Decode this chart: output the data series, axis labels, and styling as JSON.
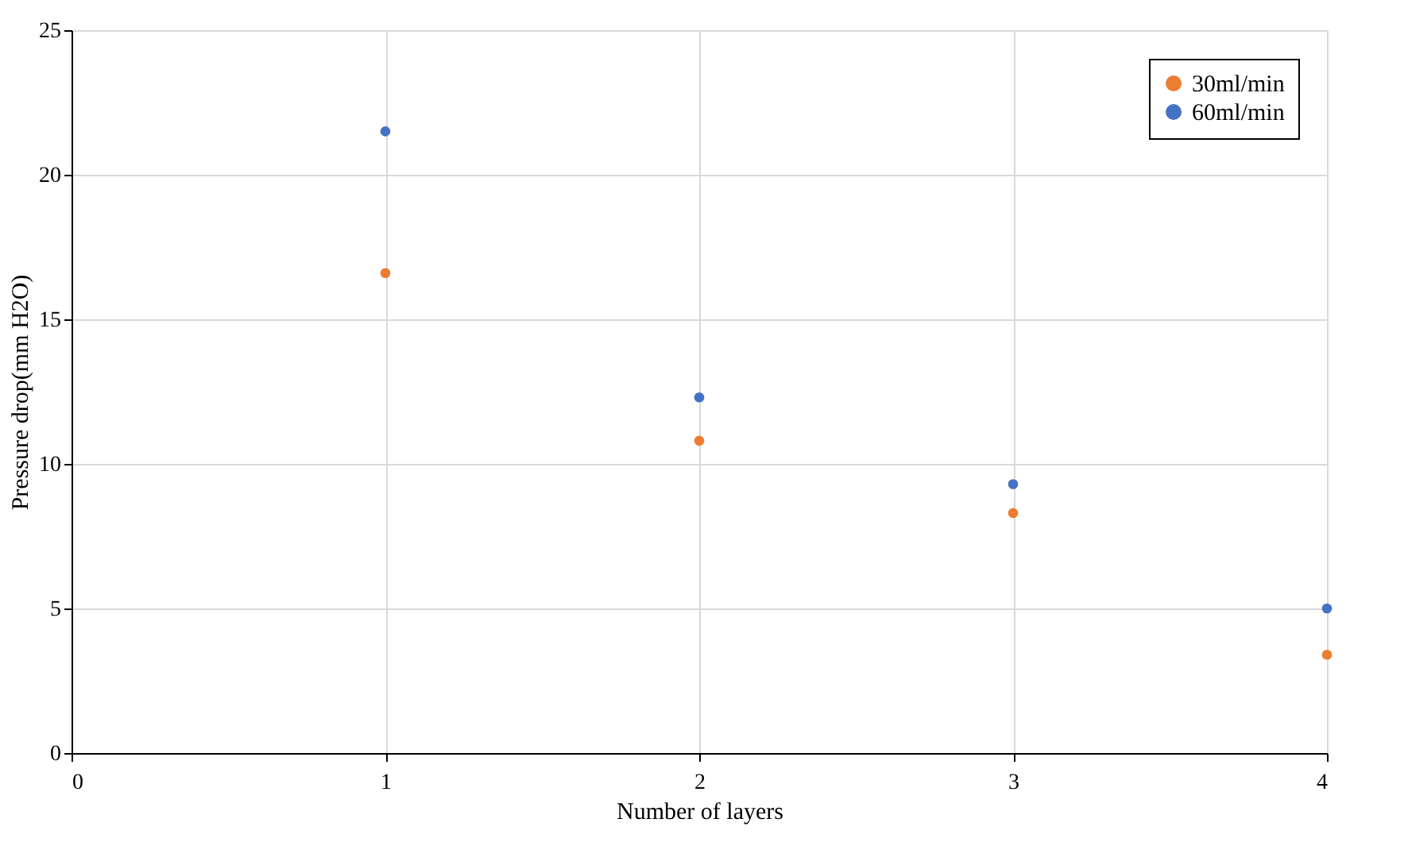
{
  "chart_data": {
    "type": "scatter",
    "xlabel": "Number of layers",
    "ylabel": "Pressure drop(mm H2O)",
    "x": [
      1,
      2,
      3,
      4
    ],
    "series": [
      {
        "name": "30ml/min",
        "color": "#ed7d31",
        "values": [
          16.6,
          10.8,
          8.3,
          3.4
        ]
      },
      {
        "name": "60ml/min",
        "color": "#4472c4",
        "values": [
          21.5,
          12.3,
          9.3,
          5.0
        ]
      }
    ],
    "xlim": [
      0,
      4
    ],
    "xticks": [
      0,
      1,
      2,
      3,
      4
    ],
    "ylim": [
      0,
      25
    ],
    "yticks": [
      0,
      5,
      10,
      15,
      20,
      25
    ],
    "grid": true,
    "legend": "top right",
    "marker": "circle"
  }
}
